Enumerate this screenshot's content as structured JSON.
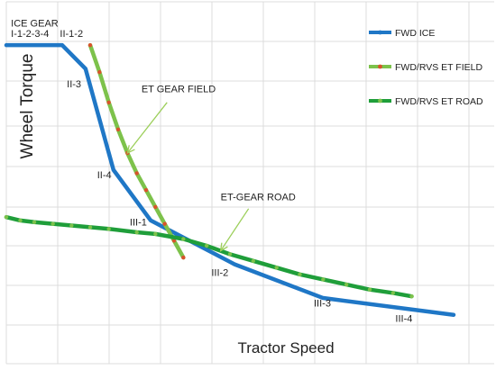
{
  "chart_data": {
    "type": "line",
    "xlabel": "Tractor Speed",
    "ylabel": "Wheel Torque",
    "xlim": [
      0,
      10
    ],
    "ylim": [
      0,
      9
    ],
    "grid": true,
    "legend_position": "right",
    "series": [
      {
        "name": "FWD ICE",
        "color": "#1f77c6",
        "marker": "none",
        "points": [
          [
            0,
            8.3
          ],
          [
            1.2,
            8.3
          ],
          [
            1.7,
            7.6
          ],
          [
            2.3,
            4.6
          ],
          [
            3.1,
            3.1
          ],
          [
            4.9,
            1.8
          ],
          [
            6.8,
            0.8
          ],
          [
            9.6,
            0.3
          ]
        ]
      },
      {
        "name": "FWD/RVS ET FIELD",
        "color": "#7dc24b",
        "marker_color": "#d9532c",
        "points": [
          [
            1.8,
            8.3
          ],
          [
            2.0,
            7.5
          ],
          [
            2.2,
            6.6
          ],
          [
            2.4,
            5.8
          ],
          [
            2.6,
            5.1
          ],
          [
            2.8,
            4.5
          ],
          [
            3.0,
            4.0
          ],
          [
            3.2,
            3.5
          ],
          [
            3.4,
            3.0
          ],
          [
            3.6,
            2.5
          ],
          [
            3.8,
            2.0
          ]
        ]
      },
      {
        "name": "FWD/RVS ET ROAD",
        "color": "#1f9e3a",
        "marker_color": "#7dc24b",
        "points": [
          [
            0,
            3.2
          ],
          [
            0.3,
            3.1
          ],
          [
            0.6,
            3.05
          ],
          [
            1.0,
            3.0
          ],
          [
            1.4,
            2.95
          ],
          [
            1.8,
            2.9
          ],
          [
            2.2,
            2.85
          ],
          [
            2.8,
            2.75
          ],
          [
            3.2,
            2.7
          ],
          [
            3.8,
            2.55
          ],
          [
            4.3,
            2.35
          ],
          [
            4.8,
            2.1
          ],
          [
            5.3,
            1.9
          ],
          [
            5.8,
            1.7
          ],
          [
            6.3,
            1.5
          ],
          [
            6.8,
            1.35
          ],
          [
            7.3,
            1.2
          ],
          [
            7.8,
            1.05
          ],
          [
            8.3,
            0.95
          ],
          [
            8.7,
            0.85
          ]
        ]
      }
    ],
    "annotations": [
      {
        "text": "ICE GEAR",
        "x": 0.1,
        "y": 8.85
      },
      {
        "text": "I-1-2-3-4",
        "x": 0.1,
        "y": 8.55
      },
      {
        "text": "II-1-2",
        "x": 1.15,
        "y": 8.55
      },
      {
        "text": "II-3",
        "x": 1.3,
        "y": 7.05
      },
      {
        "text": "II-4",
        "x": 1.95,
        "y": 4.35
      },
      {
        "text": "III-1",
        "x": 2.65,
        "y": 2.95
      },
      {
        "text": "III-2",
        "x": 4.4,
        "y": 1.45
      },
      {
        "text": "III-3",
        "x": 6.6,
        "y": 0.55
      },
      {
        "text": "III-4",
        "x": 8.35,
        "y": 0.1
      },
      {
        "text": "ET GEAR FIELD",
        "x": 2.9,
        "y": 6.9
      },
      {
        "text": "ET-GEAR ROAD",
        "x": 4.6,
        "y": 3.7
      }
    ],
    "arrows": [
      {
        "from": [
          3.45,
          6.6
        ],
        "to": [
          2.6,
          5.1
        ]
      },
      {
        "from": [
          5.2,
          3.45
        ],
        "to": [
          4.6,
          2.2
        ]
      }
    ]
  }
}
